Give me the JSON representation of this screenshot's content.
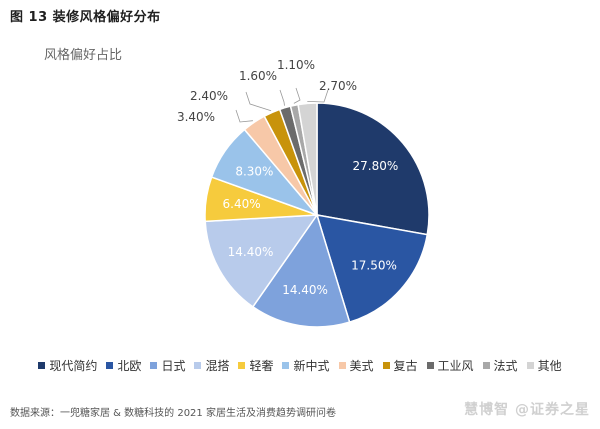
{
  "figure_title": "图 13 装修风格偏好分布",
  "source": "数据来源：一兜糖家居 & 数糖科技的 2021 家居生活及消费趋势调研问卷",
  "watermark": "慧博智 @证券之星",
  "chart_data": {
    "type": "pie",
    "title": "风格偏好占比",
    "legend_position": "bottom",
    "slices": [
      {
        "name": "现代简约",
        "value": 27.8,
        "label": "27.80%",
        "color": "#1f3a6b"
      },
      {
        "name": "北欧",
        "value": 17.5,
        "label": "17.50%",
        "color": "#2a56a3"
      },
      {
        "name": "日式",
        "value": 14.4,
        "label": "14.40%",
        "color": "#7ea2dc"
      },
      {
        "name": "混搭",
        "value": 14.4,
        "label": "14.40%",
        "color": "#b8cbeb"
      },
      {
        "name": "轻奢",
        "value": 6.4,
        "label": "6.40%",
        "color": "#f6cb3d"
      },
      {
        "name": "新中式",
        "value": 8.3,
        "label": "8.30%",
        "color": "#9ac3ea"
      },
      {
        "name": "美式",
        "value": 3.4,
        "label": "3.40%",
        "color": "#f7c8a8"
      },
      {
        "name": "复古",
        "value": 2.4,
        "label": "2.40%",
        "color": "#c8930b"
      },
      {
        "name": "工业风",
        "value": 1.6,
        "label": "1.60%",
        "color": "#6b6b6b"
      },
      {
        "name": "法式",
        "value": 1.1,
        "label": "1.10%",
        "color": "#a8a8a8"
      },
      {
        "name": "其他",
        "value": 2.7,
        "label": "2.70%",
        "color": "#d4d4d4"
      }
    ]
  }
}
